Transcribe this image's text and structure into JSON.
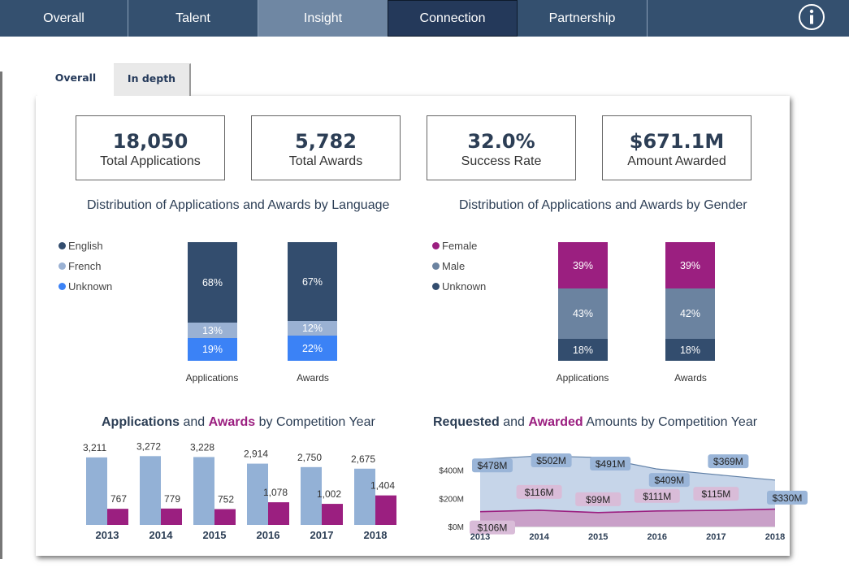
{
  "nav": {
    "tabs": [
      {
        "label": "Overall"
      },
      {
        "label": "Talent"
      },
      {
        "label": "Insight"
      },
      {
        "label": "Connection"
      },
      {
        "label": "Partnership"
      }
    ],
    "active": "Insight",
    "info_icon": "info-icon"
  },
  "subtabs": [
    {
      "label": "Overall"
    },
    {
      "label": "In depth"
    }
  ],
  "kpis": [
    {
      "value": "18,050",
      "label": "Total Applications"
    },
    {
      "value": "5,782",
      "label": "Total Awards"
    },
    {
      "value": "32.0%",
      "label": "Success Rate"
    },
    {
      "value": "$671.1M",
      "label": "Amount Awarded"
    }
  ],
  "language_chart": {
    "title": "Distribution of Applications and Awards by Language",
    "legend": [
      "English",
      "French",
      "Unknown"
    ],
    "colors": {
      "English": "#334d6e",
      "French": "#9ab1d3",
      "Unknown": "#3b82f6"
    },
    "bars": [
      {
        "category": "Applications",
        "English": "68%",
        "French": "13%",
        "Unknown": "19%"
      },
      {
        "category": "Awards",
        "English": "67%",
        "French": "12%",
        "Unknown": "22%"
      }
    ]
  },
  "gender_chart": {
    "title": "Distribution of Applications and Awards by Gender",
    "legend": [
      "Female",
      "Male",
      "Unknown"
    ],
    "colors": {
      "Female": "#9b1f80",
      "Male": "#6b83a0",
      "Unknown": "#334d6e"
    },
    "bars": [
      {
        "category": "Applications",
        "Female": "39%",
        "Male": "43%",
        "Unknown": "18%"
      },
      {
        "category": "Awards",
        "Female": "39%",
        "Male": "42%",
        "Unknown": "18%"
      }
    ]
  },
  "applications_awards": {
    "title_a": "Applications",
    "title_and": "and",
    "title_b": "Awards",
    "title_rest": "by Competition Year",
    "colors": {
      "applications": "#93b1d6",
      "awards": "#9b1f80",
      "title_awards": "#9b1f80"
    }
  },
  "amounts": {
    "title_a": "Requested",
    "title_and": "and",
    "title_b": "Awarded",
    "title_rest": "Amounts by Competition Year",
    "colors": {
      "requested": "#b8cbe3",
      "awarded": "#c99ac4",
      "awarded_line": "#9b1f80",
      "requested_line": "#5f7fa6"
    }
  },
  "chart_data": [
    {
      "type": "bar",
      "title": "Applications and Awards by Competition Year",
      "categories": [
        "2013",
        "2014",
        "2015",
        "2016",
        "2017",
        "2018"
      ],
      "series": [
        {
          "name": "Applications",
          "values": [
            3211,
            3272,
            3228,
            2914,
            2750,
            2675
          ],
          "labels": [
            "3,211",
            "3,272",
            "3,228",
            "2,914",
            "2,750",
            "2,675"
          ]
        },
        {
          "name": "Awards",
          "values": [
            767,
            779,
            752,
            1078,
            1002,
            1404
          ],
          "labels": [
            "767",
            "779",
            "752",
            "1,078",
            "1,002",
            "1,404"
          ]
        }
      ],
      "ylim": [
        0,
        3400
      ]
    },
    {
      "type": "area",
      "title": "Requested and Awarded Amounts by Competition Year",
      "x": [
        "2013",
        "2014",
        "2015",
        "2016",
        "2017",
        "2018"
      ],
      "series": [
        {
          "name": "Requested",
          "values": [
            478,
            502,
            491,
            409,
            369,
            330
          ],
          "labels": [
            "$478M",
            "$502M",
            "$491M",
            "$409M",
            "$369M",
            "$330M"
          ]
        },
        {
          "name": "Awarded",
          "values": [
            106,
            116,
            99,
            111,
            115,
            124
          ],
          "labels": [
            "$106M",
            "$116M",
            "$99M",
            "$111M",
            "$115M",
            ""
          ]
        }
      ],
      "yticks": [
        "$0M",
        "$200M",
        "$400M"
      ],
      "ylim": [
        0,
        560
      ]
    }
  ]
}
